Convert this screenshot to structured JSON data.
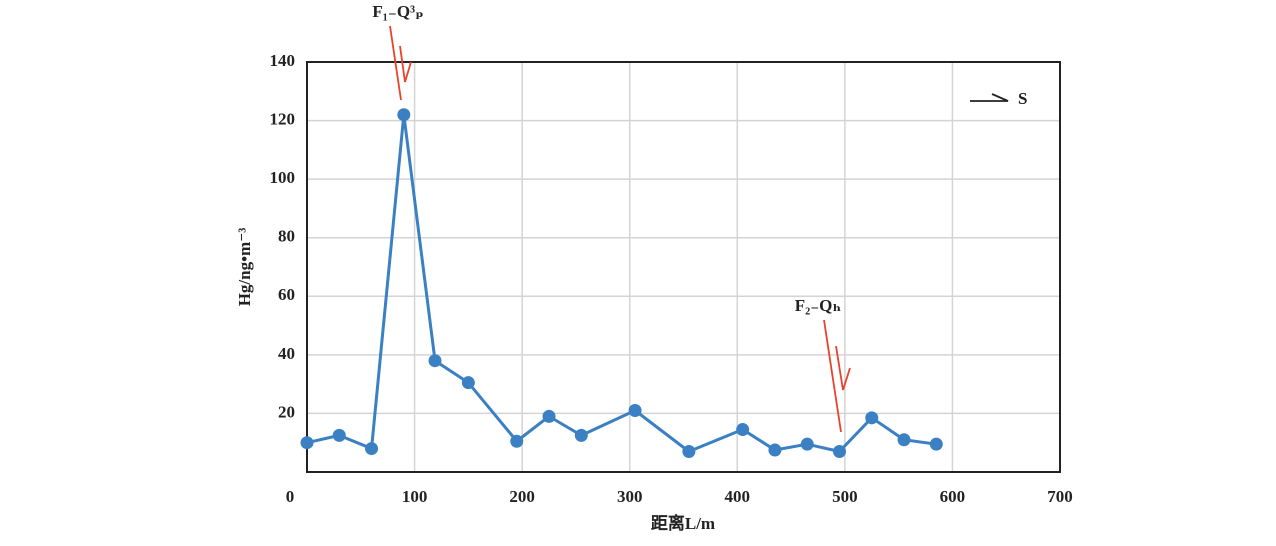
{
  "chart_data": {
    "type": "line",
    "x_label": "距离L/m",
    "y_label": "Hg/ng•m⁻³",
    "annotations": [
      "F₁₋Q³ₚ",
      "F₂₋Qₕ",
      "S"
    ],
    "x": [
      0,
      30,
      60,
      90,
      119,
      150,
      195,
      225,
      255,
      305,
      355,
      405,
      435,
      465,
      495,
      525,
      555,
      585
    ],
    "series": [
      {
        "name": "Hg",
        "color": "#3a80c2",
        "values": [
          10,
          12.5,
          8,
          122,
          38,
          30.5,
          10.5,
          19,
          12.5,
          21,
          7,
          14.5,
          7.5,
          9.5,
          7,
          18.5,
          11,
          9.5
        ]
      }
    ],
    "xlim": [
      0,
      700
    ],
    "xticks": [
      0,
      100,
      200,
      300,
      400,
      500,
      600,
      700
    ],
    "ylim": [
      0,
      140
    ],
    "yticks": [
      20,
      40,
      60,
      80,
      100,
      120,
      140
    ],
    "grid": true
  }
}
